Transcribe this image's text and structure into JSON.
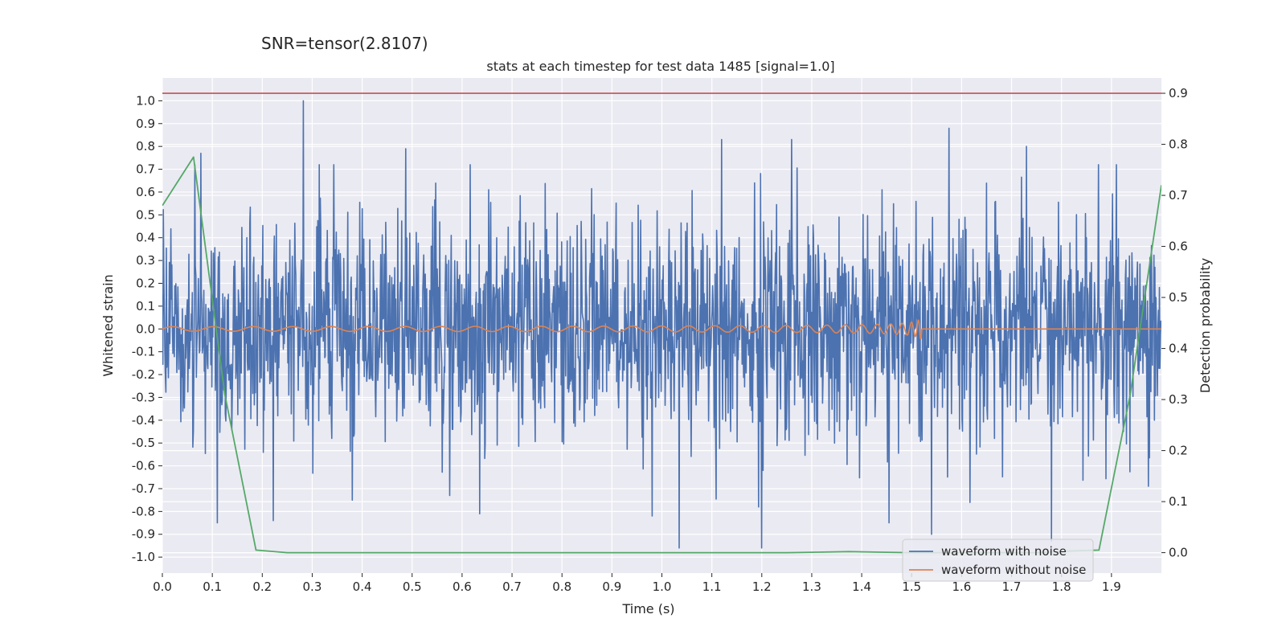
{
  "chart_data": {
    "type": "line",
    "suptitle": "SNR=tensor(2.8107)",
    "title": "stats at each timestep for test data 1485 [signal=1.0]",
    "xlabel": "Time (s)",
    "ylabel": "Whitened strain",
    "y2label": "Detection probability",
    "xlim": [
      0.0,
      2.0
    ],
    "ylim": [
      -1.07,
      1.1
    ],
    "y2lim": [
      -0.04,
      0.93
    ],
    "x_ticks": [
      "0.0",
      "0.1",
      "0.2",
      "0.3",
      "0.4",
      "0.5",
      "0.6",
      "0.7",
      "0.8",
      "0.9",
      "1.0",
      "1.1",
      "1.2",
      "1.3",
      "1.4",
      "1.5",
      "1.6",
      "1.7",
      "1.8",
      "1.9"
    ],
    "y_ticks": [
      "1.0",
      "0.9",
      "0.8",
      "0.7",
      "0.6",
      "0.5",
      "0.4",
      "0.3",
      "0.2",
      "0.1",
      "0.0",
      "-0.1",
      "-0.2",
      "-0.3",
      "-0.4",
      "-0.5",
      "-0.6",
      "-0.7",
      "-0.8",
      "-0.9",
      "-1.0"
    ],
    "y2_ticks": [
      "0.9",
      "0.8",
      "0.7",
      "0.6",
      "0.5",
      "0.4",
      "0.3",
      "0.2",
      "0.1",
      "0.0"
    ],
    "threshold": {
      "value": 0.9,
      "axis": "right",
      "color": "#c44e52"
    },
    "legend": {
      "location": "lower-right"
    },
    "series": [
      {
        "name": "waveform with noise",
        "axis": "left",
        "color": "#4c72b0",
        "noise": {
          "samples": 2000,
          "std": 0.24,
          "seed": 1485
        },
        "peaks": [
          {
            "x": 0.282,
            "y": 1.0
          },
          {
            "x": 0.077,
            "y": 0.77
          },
          {
            "x": 0.065,
            "y": 0.72
          },
          {
            "x": 0.487,
            "y": 0.79
          },
          {
            "x": 1.575,
            "y": 0.88
          },
          {
            "x": 1.12,
            "y": 0.83
          },
          {
            "x": 1.26,
            "y": 0.83
          },
          {
            "x": 1.73,
            "y": 0.8
          },
          {
            "x": 1.91,
            "y": 0.72
          },
          {
            "x": 0.11,
            "y": -0.85
          },
          {
            "x": 0.222,
            "y": -0.84
          },
          {
            "x": 1.035,
            "y": -0.96
          },
          {
            "x": 1.2,
            "y": -0.96
          },
          {
            "x": 1.78,
            "y": -0.93
          },
          {
            "x": 1.54,
            "y": -0.9
          },
          {
            "x": 0.575,
            "y": -0.73
          },
          {
            "x": 0.635,
            "y": -0.81
          },
          {
            "x": 0.98,
            "y": -0.82
          },
          {
            "x": 1.455,
            "y": -0.85
          },
          {
            "x": 0.38,
            "y": -0.75
          }
        ]
      },
      {
        "name": "waveform without noise",
        "axis": "left",
        "color": "#dd8452",
        "chirp": {
          "t_start": 0.0,
          "t_merge": 1.52,
          "f0": 12,
          "f1": 120,
          "a0": 0.01,
          "a1": 0.15
        }
      },
      {
        "name": "detection probability",
        "axis": "right",
        "color": "#55a868",
        "x": [
          0.0,
          0.0625,
          0.125,
          0.1875,
          0.25,
          0.3125,
          0.375,
          0.4375,
          0.5,
          0.5625,
          0.625,
          0.6875,
          0.75,
          0.8125,
          0.875,
          0.9375,
          1.0,
          1.0625,
          1.125,
          1.1875,
          1.25,
          1.3125,
          1.375,
          1.4375,
          1.5,
          1.5625,
          1.625,
          1.6875,
          1.75,
          1.8125,
          1.875,
          1.9375,
          2.0
        ],
        "values": [
          0.68,
          0.775,
          0.31,
          0.005,
          0.0,
          0.0,
          0.0,
          0.0,
          0.0,
          0.0,
          0.0,
          0.0,
          0.0,
          0.0,
          0.0,
          0.0,
          0.0,
          0.0,
          0.0,
          0.0,
          0.0,
          0.001,
          0.002,
          0.001,
          0.0,
          0.0,
          0.0,
          0.0,
          0.0,
          0.003,
          0.005,
          0.31,
          0.72
        ]
      }
    ]
  }
}
